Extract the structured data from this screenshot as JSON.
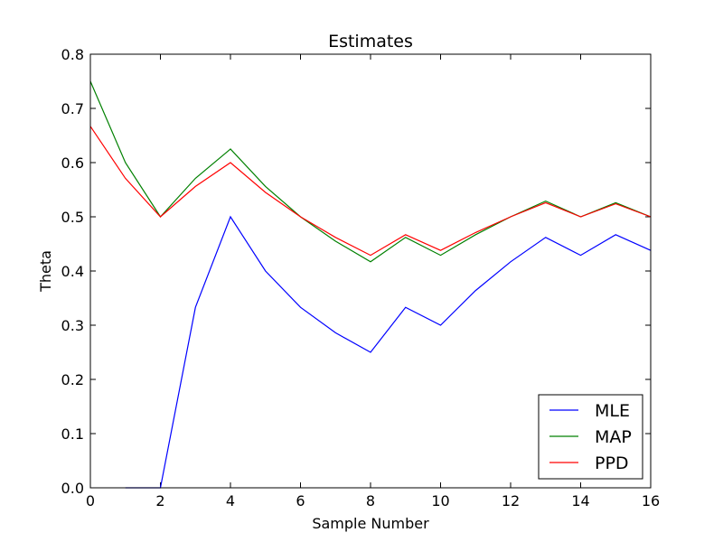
{
  "chart_data": {
    "type": "line",
    "title": "Estimates",
    "xlabel": "Sample Number",
    "ylabel": "Theta",
    "xlim": [
      0,
      16
    ],
    "ylim": [
      0,
      0.8
    ],
    "xticks": [
      0,
      2,
      4,
      6,
      8,
      10,
      12,
      14,
      16
    ],
    "yticks": [
      0.0,
      0.1,
      0.2,
      0.3,
      0.4,
      0.5,
      0.6,
      0.7,
      0.8
    ],
    "xtick_labels": [
      "0",
      "2",
      "4",
      "6",
      "8",
      "10",
      "12",
      "14",
      "16"
    ],
    "ytick_labels": [
      "0.0",
      "0.1",
      "0.2",
      "0.3",
      "0.4",
      "0.5",
      "0.6",
      "0.7",
      "0.8"
    ],
    "grid": false,
    "legend_position": "bottom-right",
    "series": [
      {
        "name": "MLE",
        "color": "#0000ff",
        "x": [
          1,
          2,
          3,
          4,
          5,
          6,
          7,
          8,
          9,
          10,
          11,
          12,
          13,
          14,
          15,
          16
        ],
        "y": [
          0.0,
          0.0,
          0.333,
          0.5,
          0.4,
          0.333,
          0.286,
          0.25,
          0.333,
          0.3,
          0.364,
          0.417,
          0.462,
          0.429,
          0.467,
          0.438
        ]
      },
      {
        "name": "MAP",
        "color": "#008000",
        "x": [
          0,
          1,
          2,
          3,
          4,
          5,
          6,
          7,
          8,
          9,
          10,
          11,
          12,
          13,
          14,
          15,
          16
        ],
        "y": [
          0.75,
          0.6,
          0.5,
          0.571,
          0.625,
          0.556,
          0.5,
          0.455,
          0.417,
          0.462,
          0.429,
          0.467,
          0.5,
          0.529,
          0.5,
          0.526,
          0.5
        ]
      },
      {
        "name": "PPD",
        "color": "#ff0000",
        "x": [
          0,
          1,
          2,
          3,
          4,
          5,
          6,
          7,
          8,
          9,
          10,
          11,
          12,
          13,
          14,
          15,
          16
        ],
        "y": [
          0.667,
          0.571,
          0.5,
          0.556,
          0.6,
          0.545,
          0.5,
          0.462,
          0.429,
          0.467,
          0.438,
          0.471,
          0.5,
          0.526,
          0.5,
          0.524,
          0.5
        ]
      }
    ]
  }
}
